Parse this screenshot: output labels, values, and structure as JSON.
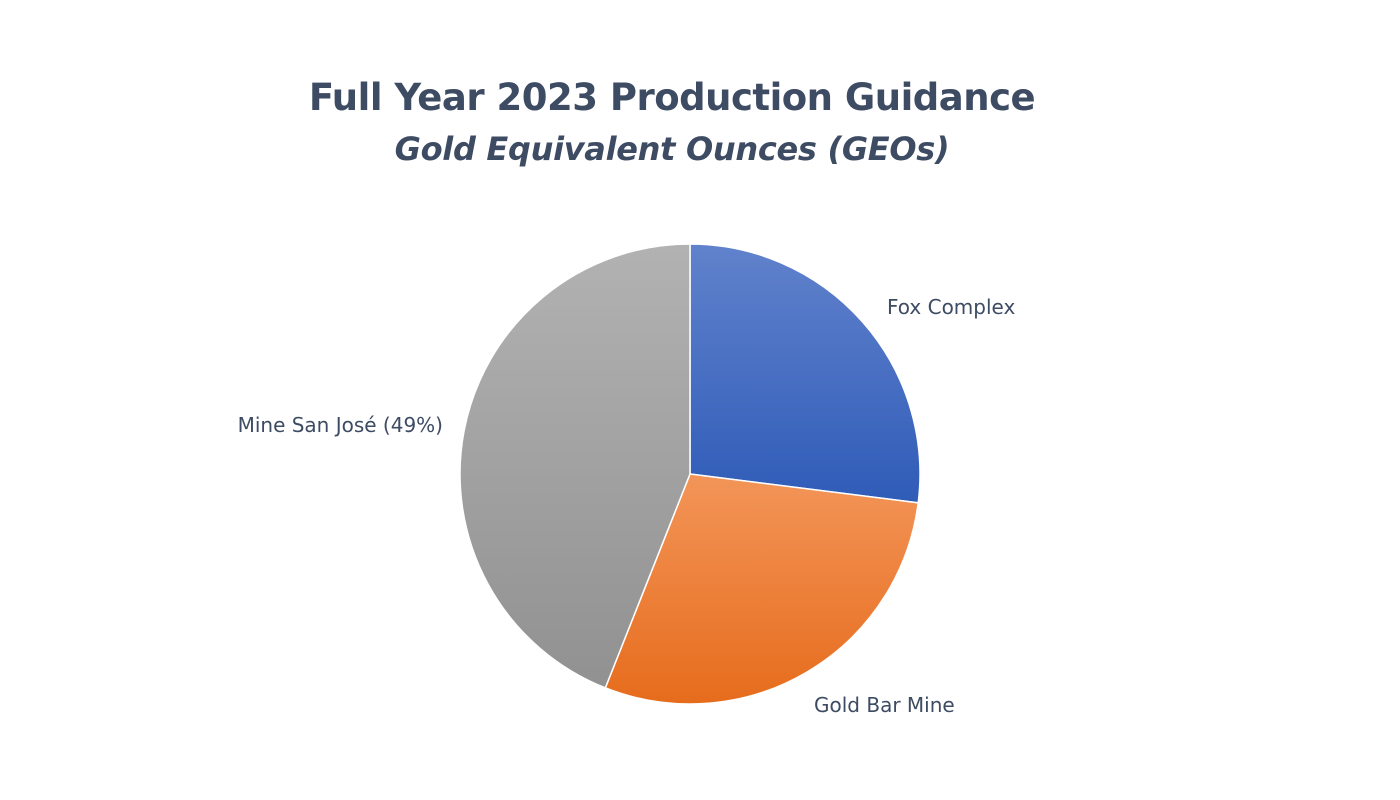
{
  "chart_data": {
    "type": "pie",
    "title": "Full Year 2023 Production Guidance",
    "subtitle": "Gold Equivalent Ounces (GEOs)",
    "slices": [
      {
        "name": "Fox Complex",
        "label": "Fox Complex",
        "value": 27,
        "color": "#4472c4"
      },
      {
        "name": "Gold Bar Mine",
        "label": "Gold Bar Mine",
        "value": 29,
        "color": "#ed7d31"
      },
      {
        "name": "Mine San José",
        "label": "Mine San José (49%)",
        "value": 44,
        "color": "#a5a5a5"
      }
    ],
    "start_angle_deg": 0,
    "direction": "clockwise",
    "legend": "none"
  }
}
